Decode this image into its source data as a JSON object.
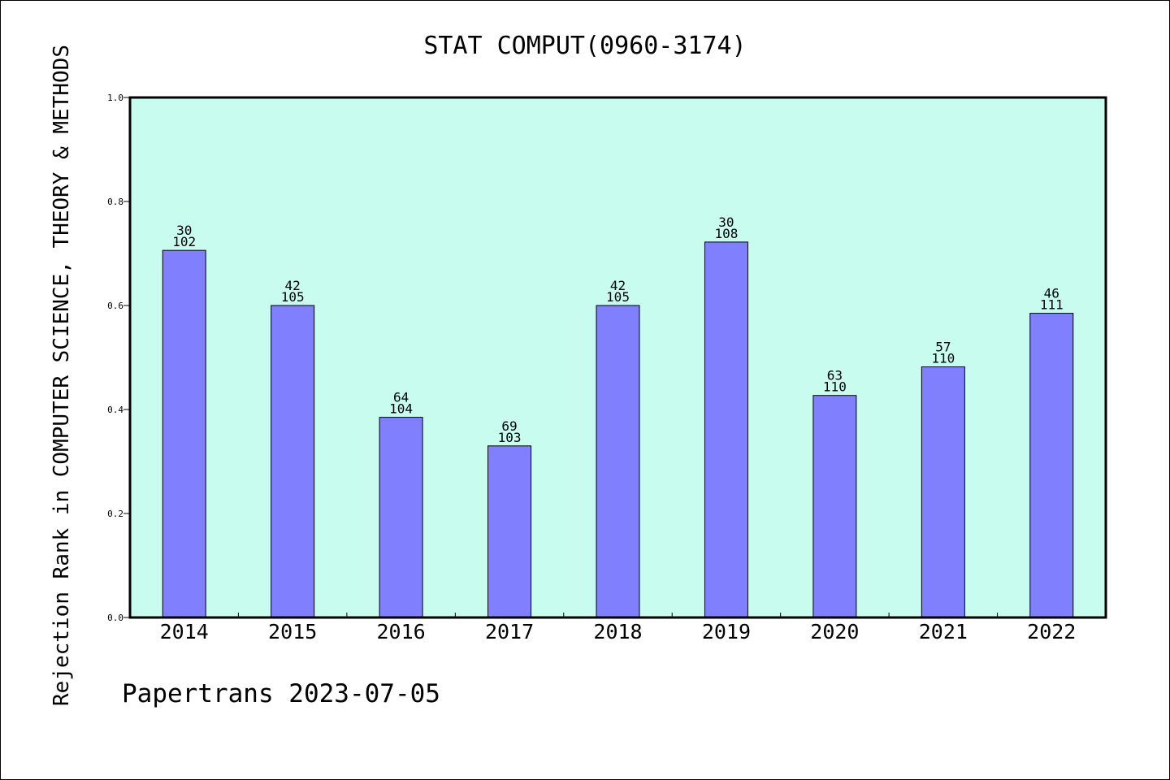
{
  "chart_data": {
    "type": "bar",
    "title": "STAT COMPUT(0960-3174)",
    "ylabel": "Rejection Rank in COMPUTER SCIENCE, THEORY & METHODS",
    "xlabel": "",
    "footer": "Papertrans 2023-07-05",
    "categories": [
      "2014",
      "2015",
      "2016",
      "2017",
      "2018",
      "2019",
      "2020",
      "2021",
      "2022"
    ],
    "values": [
      0.706,
      0.6,
      0.385,
      0.33,
      0.6,
      0.722,
      0.427,
      0.482,
      0.585
    ],
    "label_top": [
      "30",
      "42",
      "64",
      "69",
      "42",
      "30",
      "63",
      "57",
      "46"
    ],
    "label_bottom": [
      "102",
      "105",
      "104",
      "103",
      "105",
      "108",
      "110",
      "110",
      "111"
    ],
    "ylim": [
      0,
      1.0
    ],
    "yticks": [
      "0.0",
      "0.2",
      "0.4",
      "0.6",
      "0.8",
      "1.0"
    ],
    "grid": false,
    "legend": "none",
    "colors": {
      "bar": "#8080ff",
      "plot_bg": "#c8fcef"
    }
  }
}
